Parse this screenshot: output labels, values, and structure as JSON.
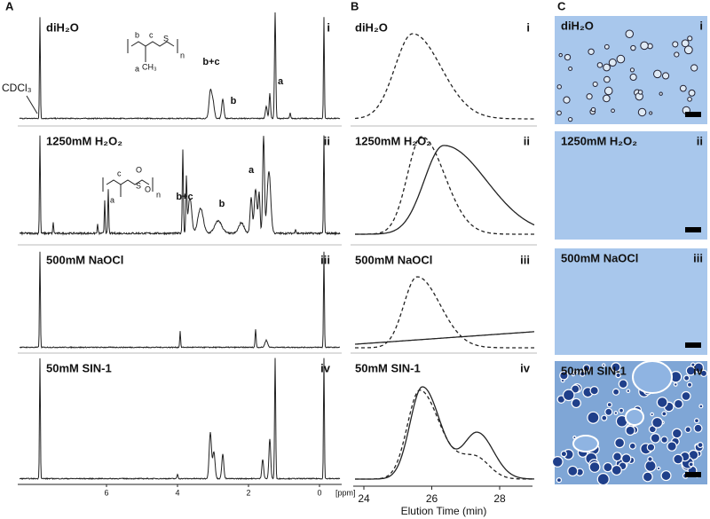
{
  "panel_a": {
    "letter": "A",
    "reference": "CDCl₃",
    "peaks": [
      "b+c",
      "b",
      "a"
    ],
    "structure_1": [
      "b",
      "c",
      "S",
      "n",
      "a",
      "CH₃"
    ],
    "structure_2": [
      "S",
      "O",
      "O",
      "n",
      "c",
      "a"
    ],
    "x_ticks": [
      6,
      4,
      2,
      0
    ],
    "x_unit": "[ppm]"
  },
  "conditions": [
    {
      "label": "diH₂O",
      "numeral": "i"
    },
    {
      "label": "1250mM H₂O₂",
      "numeral": "ii"
    },
    {
      "label": "500mM NaOCl",
      "numeral": "iii"
    },
    {
      "label": "50mM SIN-1",
      "numeral": "iv"
    }
  ],
  "panel_b": {
    "letter": "B",
    "x_ticks": [
      24,
      26,
      28
    ],
    "x_label": "Elution Time (min)"
  },
  "panel_c": {
    "letter": "C"
  }
}
